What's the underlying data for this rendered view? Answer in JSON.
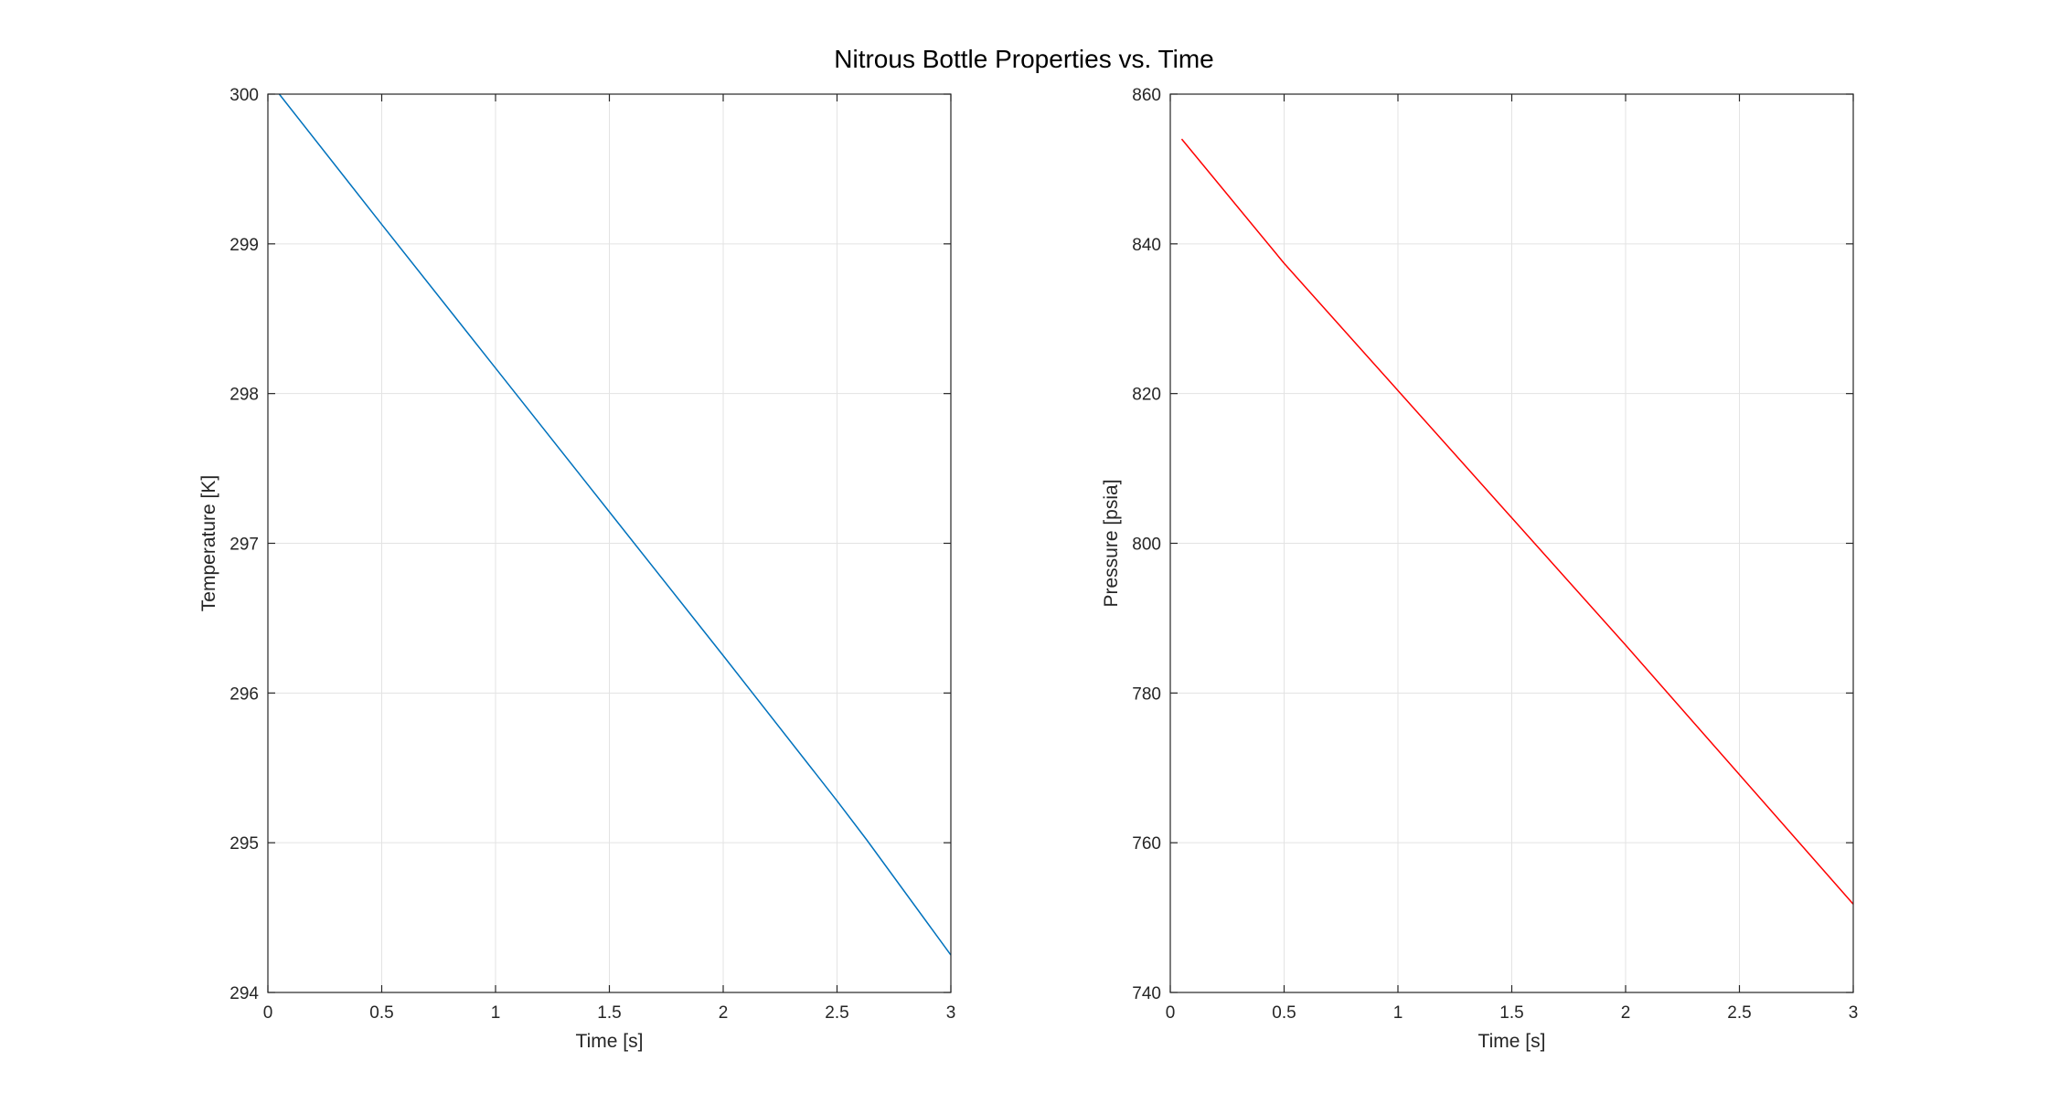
{
  "figure": {
    "title": "Nitrous Bottle Properties vs. Time"
  },
  "chart_data": [
    {
      "type": "line",
      "xlabel": "Time [s]",
      "ylabel": "Temperature [K]",
      "xlim": [
        0,
        3
      ],
      "ylim": [
        294,
        300
      ],
      "xticks": [
        0,
        0.5,
        1,
        1.5,
        2,
        2.5,
        3
      ],
      "xtick_labels": [
        "0",
        "0.5",
        "1",
        "1.5",
        "2",
        "2.5",
        "3"
      ],
      "yticks": [
        294,
        295,
        296,
        297,
        298,
        299,
        300
      ],
      "ytick_labels": [
        "294",
        "295",
        "296",
        "297",
        "298",
        "299",
        "300"
      ],
      "grid": true,
      "series": [
        {
          "color": "#0072BD",
          "x": [
            0.05,
            0.5,
            1.0,
            1.5,
            2.0,
            2.5,
            2.63,
            3.0
          ],
          "y": [
            300.0,
            299.13,
            298.17,
            297.21,
            296.25,
            295.28,
            295.02,
            294.25
          ]
        }
      ]
    },
    {
      "type": "line",
      "xlabel": "Time [s]",
      "ylabel": "Pressure [psia]",
      "xlim": [
        0,
        3
      ],
      "ylim": [
        740,
        860
      ],
      "xticks": [
        0,
        0.5,
        1,
        1.5,
        2,
        2.5,
        3
      ],
      "xtick_labels": [
        "0",
        "0.5",
        "1",
        "1.5",
        "2",
        "2.5",
        "3"
      ],
      "yticks": [
        740,
        760,
        780,
        800,
        820,
        840,
        860
      ],
      "ytick_labels": [
        "740",
        "760",
        "780",
        "800",
        "820",
        "840",
        "860"
      ],
      "grid": true,
      "series": [
        {
          "color": "#FF0000",
          "x": [
            0.05,
            0.5,
            1.0,
            1.5,
            2.0,
            2.5,
            3.0
          ],
          "y": [
            854.0,
            837.4,
            820.4,
            803.4,
            786.4,
            769.1,
            751.8
          ]
        }
      ]
    }
  ]
}
